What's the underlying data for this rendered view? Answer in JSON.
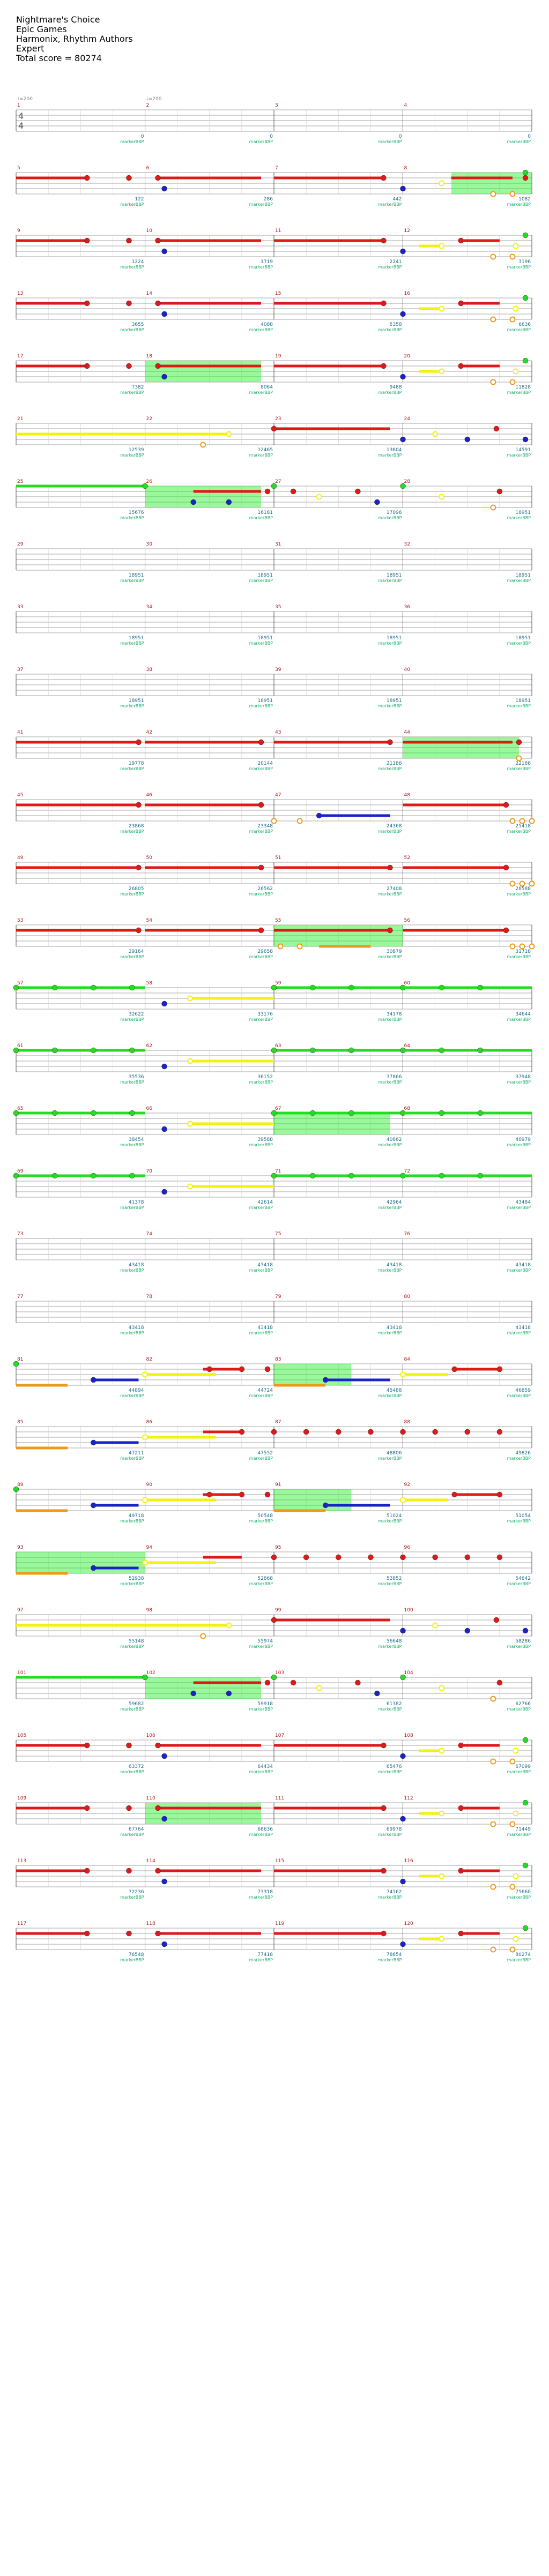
{
  "header": {
    "song_title": "Nightmare's Choice",
    "artist": "Epic Games",
    "charter": "Harmonix, Rhythm Authors",
    "difficulty": "Expert",
    "total_score": "Total score = 80274"
  },
  "tempo_markers": [
    "♩=200",
    "♩=200"
  ],
  "time_signature": [
    "4",
    "4"
  ],
  "footer_label": "markerBBP",
  "colors": {
    "green": "#22dd22",
    "red": "#e01818",
    "yellow": "#f2f20a",
    "blue": "#1a22c8",
    "orange": "#ee9a18",
    "overdrive": "#22ee22",
    "measure_number": "#b01818",
    "score": "#1a6a8a",
    "label": "#19b06a"
  },
  "rows": [
    {
      "measures": [
        1,
        2,
        3,
        4
      ],
      "scores": [
        "0",
        "0",
        "0",
        "0"
      ],
      "starts": [
        "",
        "",
        "",
        ""
      ],
      "notes": "A"
    },
    {
      "measures": [
        5,
        6,
        7,
        8
      ],
      "scores": [
        "122",
        "286",
        "442",
        "1082"
      ],
      "starts": [
        "",
        "",
        "",
        ""
      ],
      "notes": "B"
    },
    {
      "measures": [
        9,
        10,
        11,
        12
      ],
      "scores": [
        "1224",
        "1719",
        "2241",
        "3196"
      ],
      "starts": [
        "",
        "",
        "",
        ""
      ],
      "notes": "C"
    },
    {
      "measures": [
        13,
        14,
        15,
        16
      ],
      "scores": [
        "3655",
        "4088",
        "5358",
        "6636"
      ],
      "starts": [
        "",
        "",
        "",
        ""
      ],
      "notes": "C"
    },
    {
      "measures": [
        17,
        18,
        19,
        20
      ],
      "scores": [
        "7382",
        "8064",
        "9488",
        "11828"
      ],
      "starts": [
        "",
        "",
        "",
        ""
      ],
      "notes": "D"
    },
    {
      "measures": [
        21,
        22,
        23,
        24
      ],
      "scores": [
        "12539",
        "12465",
        "13604",
        "14591"
      ],
      "starts": [
        "",
        "",
        "",
        ""
      ],
      "notes": "E"
    },
    {
      "measures": [
        25,
        26,
        27,
        28
      ],
      "scores": [
        "15676",
        "16181",
        "17096",
        "18951"
      ],
      "starts": [
        "",
        "",
        "",
        ""
      ],
      "notes": "F"
    },
    {
      "measures": [
        29,
        30,
        31,
        32
      ],
      "scores": [
        "18951",
        "18951",
        "18951",
        "18951"
      ],
      "starts": [
        "",
        "",
        "",
        ""
      ],
      "notes": "X"
    },
    {
      "measures": [
        33,
        34,
        35,
        36
      ],
      "scores": [
        "18951",
        "18951",
        "18951",
        "18951"
      ],
      "starts": [
        "",
        "",
        "",
        ""
      ],
      "notes": "X"
    },
    {
      "measures": [
        37,
        38,
        39,
        40
      ],
      "scores": [
        "18951",
        "18951",
        "18951",
        "18951"
      ],
      "starts": [
        "",
        "",
        "",
        ""
      ],
      "notes": "X"
    },
    {
      "measures": [
        41,
        42,
        43,
        44
      ],
      "scores": [
        "19778",
        "20144",
        "21186",
        "22188"
      ],
      "starts": [
        "",
        "",
        "",
        ""
      ],
      "notes": "G"
    },
    {
      "measures": [
        45,
        46,
        47,
        48
      ],
      "scores": [
        "23868",
        "23348",
        "24368",
        "25418"
      ],
      "starts": [
        "",
        "",
        "",
        ""
      ],
      "notes": "H"
    },
    {
      "measures": [
        49,
        50,
        51,
        52
      ],
      "scores": [
        "26805",
        "26562",
        "27408",
        "28588"
      ],
      "starts": [
        "",
        "",
        "",
        ""
      ],
      "notes": "I"
    },
    {
      "measures": [
        53,
        54,
        55,
        56
      ],
      "scores": [
        "29164",
        "29658",
        "30879",
        "31718"
      ],
      "starts": [
        "",
        "",
        "",
        ""
      ],
      "notes": "J"
    },
    {
      "measures": [
        57,
        58,
        59,
        60
      ],
      "scores": [
        "32622",
        "33176",
        "34178",
        "34644"
      ],
      "starts": [
        "",
        "",
        "",
        ""
      ],
      "notes": "K"
    },
    {
      "measures": [
        61,
        62,
        63,
        64
      ],
      "scores": [
        "35536",
        "36152",
        "37866",
        "37948"
      ],
      "starts": [
        "",
        "",
        "",
        ""
      ],
      "notes": "K"
    },
    {
      "measures": [
        65,
        66,
        67,
        68
      ],
      "scores": [
        "38454",
        "39588",
        "40862",
        "40979"
      ],
      "starts": [
        "",
        "",
        "",
        ""
      ],
      "notes": "L"
    },
    {
      "measures": [
        69,
        70,
        71,
        72
      ],
      "scores": [
        "41378",
        "42614",
        "42964",
        "43484"
      ],
      "starts": [
        "",
        "",
        "",
        ""
      ],
      "notes": "K"
    },
    {
      "measures": [
        73,
        74,
        75,
        76
      ],
      "scores": [
        "43418",
        "43418",
        "43418",
        "43418"
      ],
      "starts": [
        "",
        "",
        "",
        ""
      ],
      "notes": "X"
    },
    {
      "measures": [
        77,
        78,
        79,
        80
      ],
      "scores": [
        "43418",
        "43418",
        "43418",
        "43418"
      ],
      "starts": [
        "",
        "",
        "",
        ""
      ],
      "notes": "X"
    },
    {
      "measures": [
        81,
        82,
        83,
        84
      ],
      "scores": [
        "44894",
        "44724",
        "45488",
        "46859"
      ],
      "starts": [
        "",
        "",
        "",
        ""
      ],
      "notes": "M"
    },
    {
      "measures": [
        85,
        86,
        87,
        88
      ],
      "scores": [
        "47211",
        "47552",
        "48806",
        "49826"
      ],
      "starts": [
        "",
        "",
        "",
        ""
      ],
      "notes": "N"
    },
    {
      "measures": [
        89,
        90,
        91,
        92
      ],
      "scores": [
        "49718",
        "50548",
        "51024",
        "51054"
      ],
      "starts": [
        "",
        "",
        "",
        ""
      ],
      "notes": "M"
    },
    {
      "measures": [
        93,
        94,
        95,
        96
      ],
      "scores": [
        "52938",
        "52868",
        "53852",
        "54642"
      ],
      "starts": [
        "",
        "",
        "",
        ""
      ],
      "notes": "O"
    },
    {
      "measures": [
        97,
        98,
        99,
        100
      ],
      "scores": [
        "55148",
        "55974",
        "56648",
        "58286"
      ],
      "starts": [
        "",
        "",
        "",
        ""
      ],
      "notes": "E"
    },
    {
      "measures": [
        101,
        102,
        103,
        104
      ],
      "scores": [
        "59682",
        "59918",
        "61382",
        "62766"
      ],
      "starts": [
        "",
        "",
        "",
        ""
      ],
      "notes": "F"
    },
    {
      "measures": [
        105,
        106,
        107,
        108
      ],
      "scores": [
        "63372",
        "64434",
        "65476",
        "67099"
      ],
      "starts": [
        "",
        "",
        "",
        ""
      ],
      "notes": "C"
    },
    {
      "measures": [
        109,
        110,
        111,
        112
      ],
      "scores": [
        "67764",
        "68636",
        "69978",
        "71449"
      ],
      "starts": [
        "",
        "",
        "",
        ""
      ],
      "notes": "D"
    },
    {
      "measures": [
        113,
        114,
        115,
        116
      ],
      "scores": [
        "72236",
        "73318",
        "74162",
        "75660"
      ],
      "starts": [
        "",
        "",
        "",
        ""
      ],
      "notes": "C"
    },
    {
      "measures": [
        117,
        118,
        119,
        120
      ],
      "scores": [
        "76548",
        "77418",
        "78654",
        "80274"
      ],
      "starts": [
        "",
        "",
        "",
        ""
      ],
      "notes": "C"
    }
  ]
}
